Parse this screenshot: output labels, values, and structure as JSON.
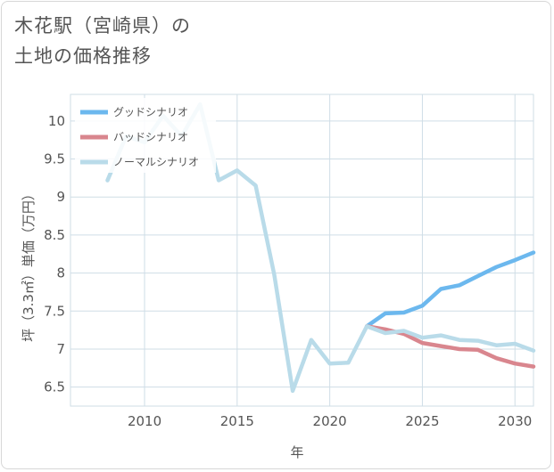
{
  "title_lines": [
    "木花駅（宮崎県）の",
    "土地の価格推移"
  ],
  "chart_data": {
    "type": "line",
    "xlabel": "年",
    "ylabel": "坪（3.3㎡）単価（万円）",
    "xlim": [
      2006,
      2031
    ],
    "ylim": [
      6.25,
      10.35
    ],
    "x_ticks": [
      2010,
      2015,
      2020,
      2025,
      2030
    ],
    "y_ticks": [
      6.5,
      7,
      7.5,
      8,
      8.5,
      9,
      9.5,
      10
    ],
    "x_tick_labels": [
      "2010",
      "2015",
      "2020",
      "2025",
      "2030"
    ],
    "y_tick_labels": [
      "6.5",
      "7",
      "7.5",
      "8",
      "8.5",
      "9",
      "9.5",
      "10"
    ],
    "grid": true,
    "legend_position": "top-left",
    "series": [
      {
        "name": "グッドシナリオ",
        "color": "#6cb8ee",
        "x": [
          2022,
          2023,
          2024,
          2025,
          2026,
          2027,
          2028,
          2029,
          2030,
          2031
        ],
        "y": [
          7.3,
          7.47,
          7.48,
          7.57,
          7.79,
          7.84,
          7.96,
          8.08,
          8.17,
          8.27
        ]
      },
      {
        "name": "バッドシナリオ",
        "color": "#d9868e",
        "x": [
          2022,
          2023,
          2024,
          2025,
          2026,
          2027,
          2028,
          2029,
          2030,
          2031
        ],
        "y": [
          7.3,
          7.26,
          7.2,
          7.08,
          7.04,
          7.0,
          6.99,
          6.88,
          6.81,
          6.77
        ]
      },
      {
        "name": "ノーマルシナリオ",
        "color": "#b9dbe9",
        "x": [
          2008,
          2009,
          2010,
          2011,
          2012,
          2013,
          2014,
          2015,
          2016,
          2017,
          2018,
          2019,
          2020,
          2021,
          2022,
          2023,
          2024,
          2025,
          2026,
          2027,
          2028,
          2029,
          2030,
          2031
        ],
        "y": [
          9.22,
          9.8,
          9.72,
          10.07,
          9.8,
          10.22,
          9.22,
          9.35,
          9.15,
          7.98,
          6.45,
          7.12,
          6.81,
          6.82,
          7.3,
          7.21,
          7.24,
          7.15,
          7.18,
          7.12,
          7.11,
          7.05,
          7.07,
          6.98
        ]
      }
    ]
  }
}
